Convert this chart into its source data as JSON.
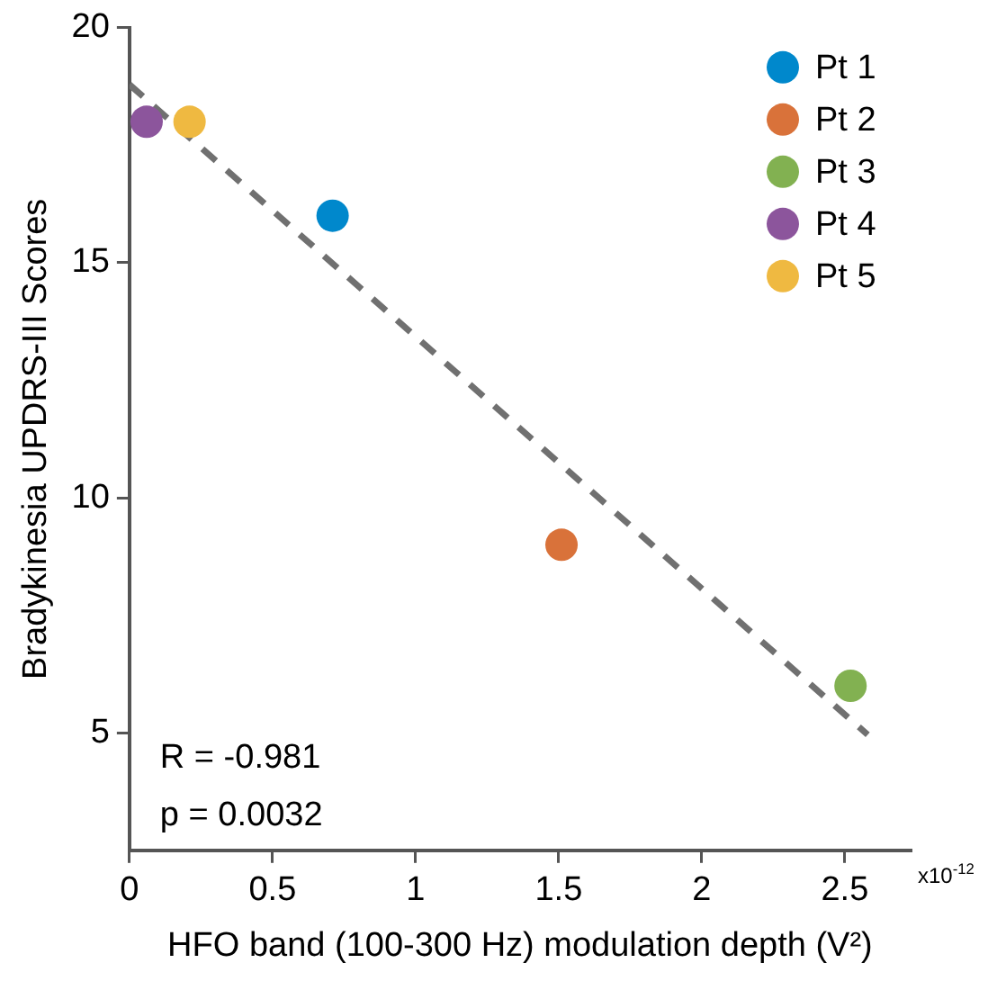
{
  "chart_data": {
    "type": "scatter",
    "xlabel": "HFO band (100-300 Hz) modulation depth (V²)",
    "ylabel": "Bradykinesia UPDRS-III Scores",
    "xlim": [
      0,
      2.73
    ],
    "xticks": [
      0,
      0.5,
      1,
      1.5,
      2,
      2.5
    ],
    "ylim": [
      2.5,
      20
    ],
    "yticks": [
      5,
      10,
      15,
      20
    ],
    "grid": false,
    "legend": "top right",
    "marker": "circle",
    "series": [
      {
        "name": "Pt 1",
        "color": "#0088cc",
        "x": [
          0.71
        ],
        "values": [
          16
        ]
      },
      {
        "name": "Pt 2",
        "color": "#d9723a",
        "x": [
          1.51
        ],
        "values": [
          9
        ]
      },
      {
        "name": "Pt 3",
        "color": "#82b151",
        "x": [
          2.52
        ],
        "values": [
          6
        ]
      },
      {
        "name": "Pt 4",
        "color": "#8c559c",
        "x": [
          0.06
        ],
        "values": [
          18
        ]
      },
      {
        "name": "Pt 5",
        "color": "#efb941",
        "x": [
          0.21
        ],
        "values": [
          18
        ]
      },
      {
        "type": "line",
        "color": "#707070",
        "line_style": "dashed",
        "marker": "none",
        "x": [
          0,
          2.58
        ],
        "values": [
          18.79,
          4.96
        ]
      }
    ],
    "annotations": [
      "R = -0.981",
      "p = 0.0032",
      "x10$^{-12}$"
    ]
  }
}
